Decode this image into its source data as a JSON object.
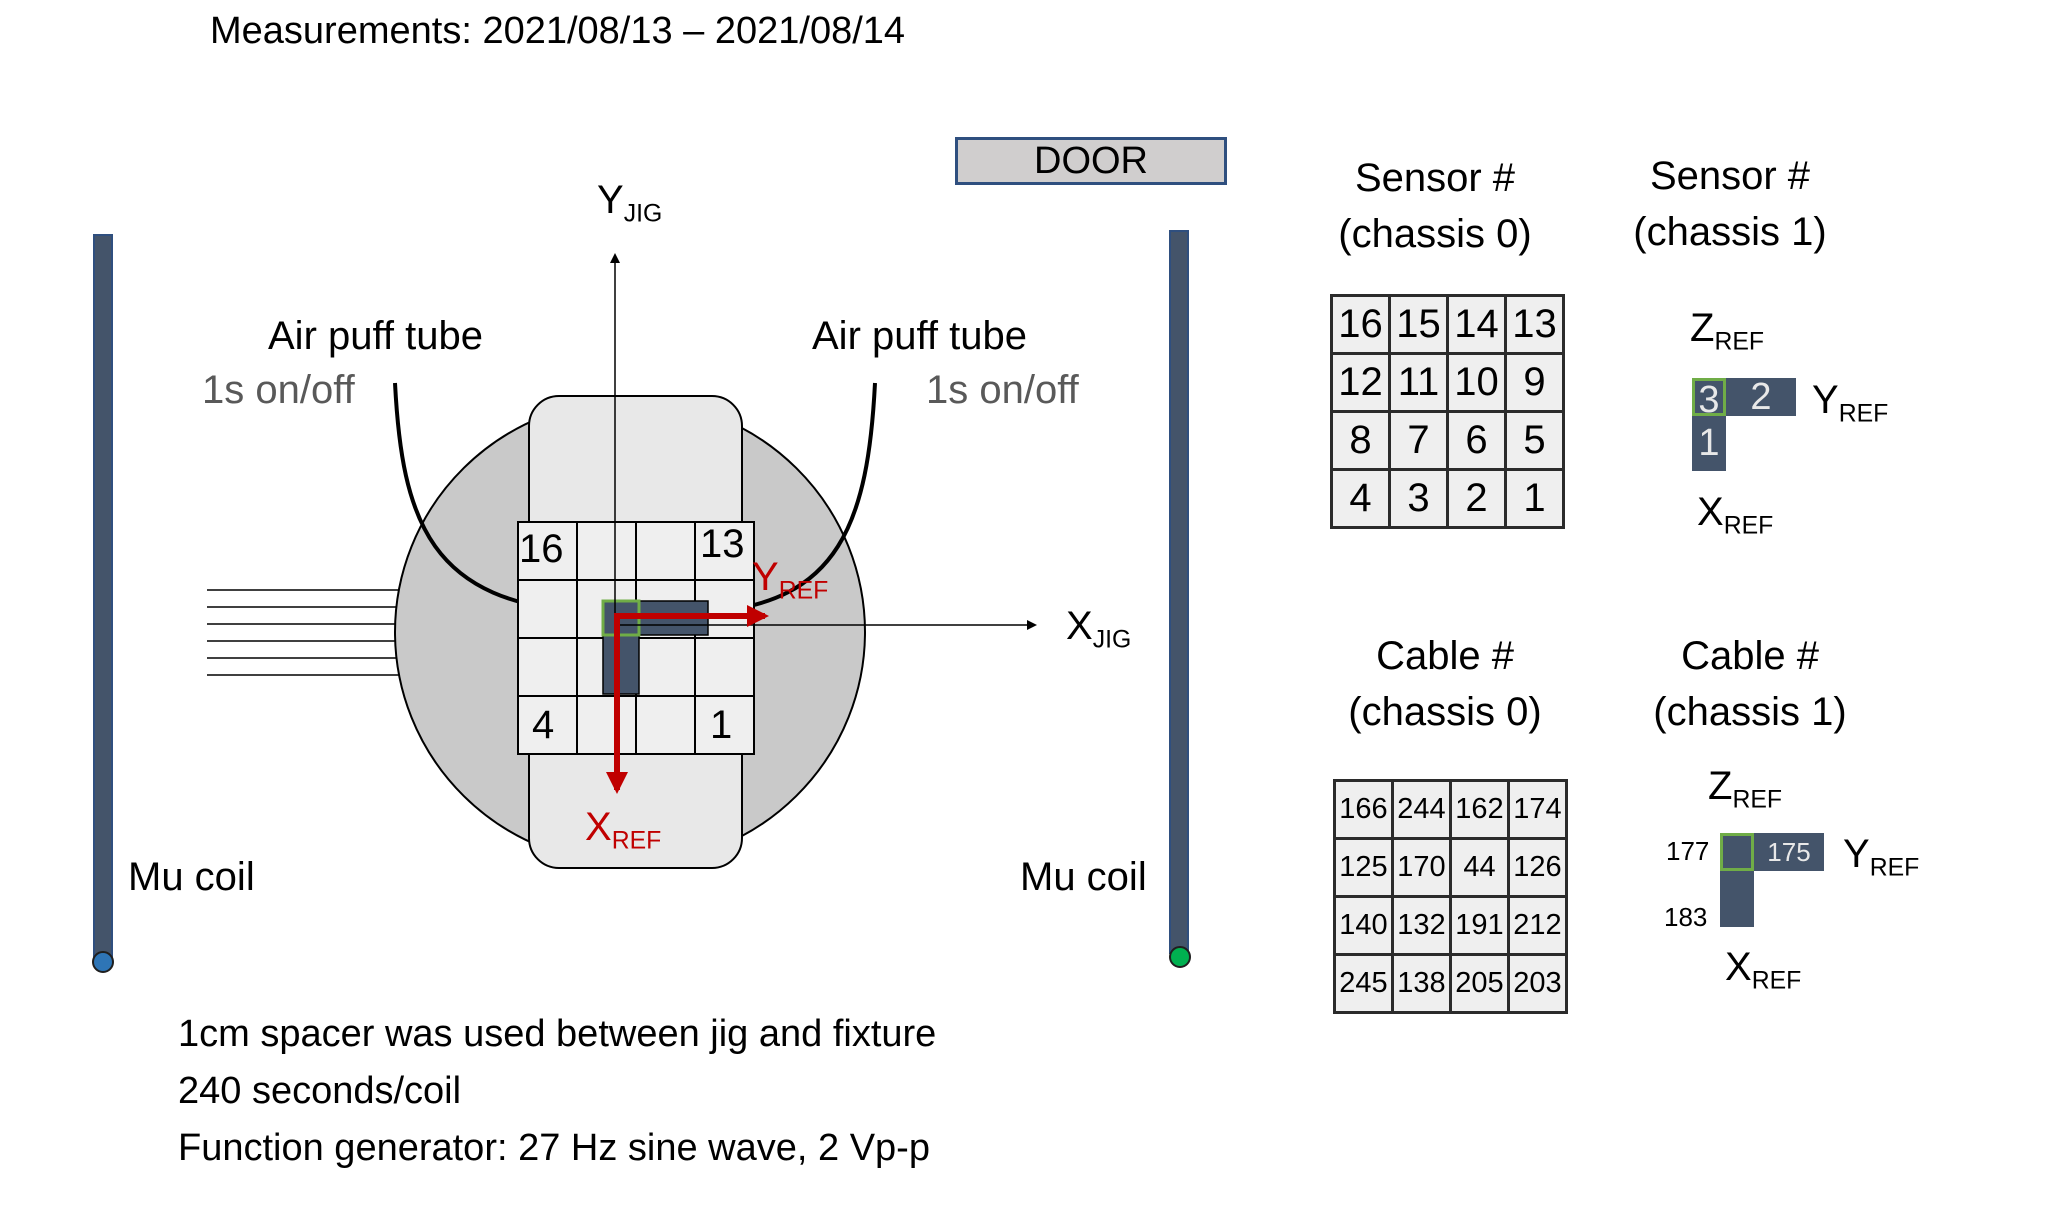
{
  "title": "Measurements: 2021/08/13 – 2021/08/14",
  "door_label": "DOOR",
  "coils": {
    "left_label": "Mu coil",
    "right_label": "Mu coil",
    "left_dot_color": "#2e75b6",
    "right_dot_color": "#00b050",
    "coil_color": "#44546a"
  },
  "air_puff": {
    "left_label": "Air puff tube",
    "right_label": "Air puff tube",
    "left_timing": "1s on/off",
    "right_timing": "1s on/off"
  },
  "jig_axes": {
    "y_main": "Y",
    "y_sub": "JIG",
    "x_main": "X",
    "x_sub": "JIG"
  },
  "ref_axes": {
    "y_main": "Y",
    "y_sub": "REF",
    "x_main": "X",
    "x_sub": "REF",
    "z_main": "Z",
    "z_sub": "REF",
    "arrow_color": "#c00000"
  },
  "jig_grid_labels": {
    "top_left": "16",
    "top_right": "13",
    "bottom_left": "4",
    "bottom_right": "1"
  },
  "sensor_chassis0": {
    "heading_line1": "Sensor #",
    "heading_line2": "(chassis 0)",
    "rows": [
      [
        "16",
        "15",
        "14",
        "13"
      ],
      [
        "12",
        "11",
        "10",
        "9"
      ],
      [
        "8",
        "7",
        "6",
        "5"
      ],
      [
        "4",
        "3",
        "2",
        "1"
      ]
    ]
  },
  "sensor_chassis1": {
    "heading_line1": "Sensor #",
    "heading_line2": "(chassis 1)",
    "cell_a": "3",
    "cell_b": "2",
    "cell_c": "1"
  },
  "cable_chassis0": {
    "heading_line1": "Cable #",
    "heading_line2": "(chassis 0)",
    "rows": [
      [
        "166",
        "244",
        "162",
        "174"
      ],
      [
        "125",
        "170",
        "44",
        "126"
      ],
      [
        "140",
        "132",
        "191",
        "212"
      ],
      [
        "245",
        "138",
        "205",
        "203"
      ]
    ]
  },
  "cable_chassis1": {
    "heading_line1": "Cable #",
    "heading_line2": "(chassis 1)",
    "corner_label": "177",
    "right_label": "175",
    "bottom_label": "183"
  },
  "notes": [
    "1cm spacer was used between jig and fixture",
    "240 seconds/coil",
    "Function generator: 27 Hz sine wave, 2 Vp-p"
  ]
}
